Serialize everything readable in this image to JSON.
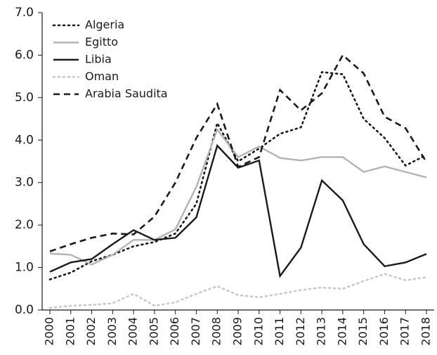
{
  "chart_data": {
    "type": "line",
    "categories": [
      "2000",
      "2001",
      "2002",
      "2003",
      "2004",
      "2005",
      "2006",
      "2007",
      "2008",
      "2009",
      "2010",
      "2011",
      "2012",
      "2013",
      "2014",
      "2015",
      "2016",
      "2017",
      "2018"
    ],
    "series": [
      {
        "name": "Algeria",
        "color": "#1a1a1a",
        "style": "dotted",
        "values": [
          0.72,
          0.88,
          1.15,
          1.3,
          1.5,
          1.6,
          1.8,
          2.5,
          4.4,
          3.5,
          3.8,
          4.15,
          4.3,
          5.6,
          5.55,
          4.5,
          4.05,
          3.4,
          3.65
        ]
      },
      {
        "name": "Egitto",
        "color": "#b3b3b3",
        "style": "solid",
        "values": [
          1.33,
          1.3,
          1.07,
          1.3,
          1.65,
          1.65,
          1.9,
          2.9,
          4.25,
          3.6,
          3.85,
          3.58,
          3.52,
          3.6,
          3.6,
          3.25,
          3.38,
          3.25,
          3.12
        ]
      },
      {
        "name": "Libia",
        "color": "#1a1a1a",
        "style": "solid",
        "values": [
          0.9,
          1.12,
          1.2,
          1.55,
          1.88,
          1.65,
          1.7,
          2.18,
          3.87,
          3.35,
          3.52,
          0.8,
          1.47,
          3.05,
          2.58,
          1.55,
          1.03,
          1.12,
          1.32
        ]
      },
      {
        "name": "Oman",
        "color": "#c8c8c8",
        "style": "dotted",
        "values": [
          0.05,
          0.1,
          0.12,
          0.16,
          0.38,
          0.1,
          0.18,
          0.38,
          0.56,
          0.35,
          0.3,
          0.38,
          0.47,
          0.53,
          0.5,
          0.68,
          0.85,
          0.7,
          0.77
        ]
      },
      {
        "name": "Arabia Saudita",
        "color": "#1a1a1a",
        "style": "dashed",
        "values": [
          1.38,
          1.55,
          1.7,
          1.8,
          1.78,
          2.2,
          3.0,
          4.05,
          4.85,
          3.37,
          3.6,
          5.18,
          4.7,
          5.1,
          6.0,
          5.57,
          4.55,
          4.28,
          3.48
        ]
      }
    ],
    "ylim": [
      0,
      7
    ],
    "yticks": [
      {
        "value": 0,
        "label": "0.0"
      },
      {
        "value": 1,
        "label": "1.0"
      },
      {
        "value": 2,
        "label": "2.0"
      },
      {
        "value": 3,
        "label": "3.0"
      },
      {
        "value": 4,
        "label": "4.0"
      },
      {
        "value": 5,
        "label": "5.0"
      },
      {
        "value": 6,
        "label": "6.0"
      },
      {
        "value": 7,
        "label": "7.0"
      }
    ],
    "grid": false,
    "legend": "top-left"
  }
}
